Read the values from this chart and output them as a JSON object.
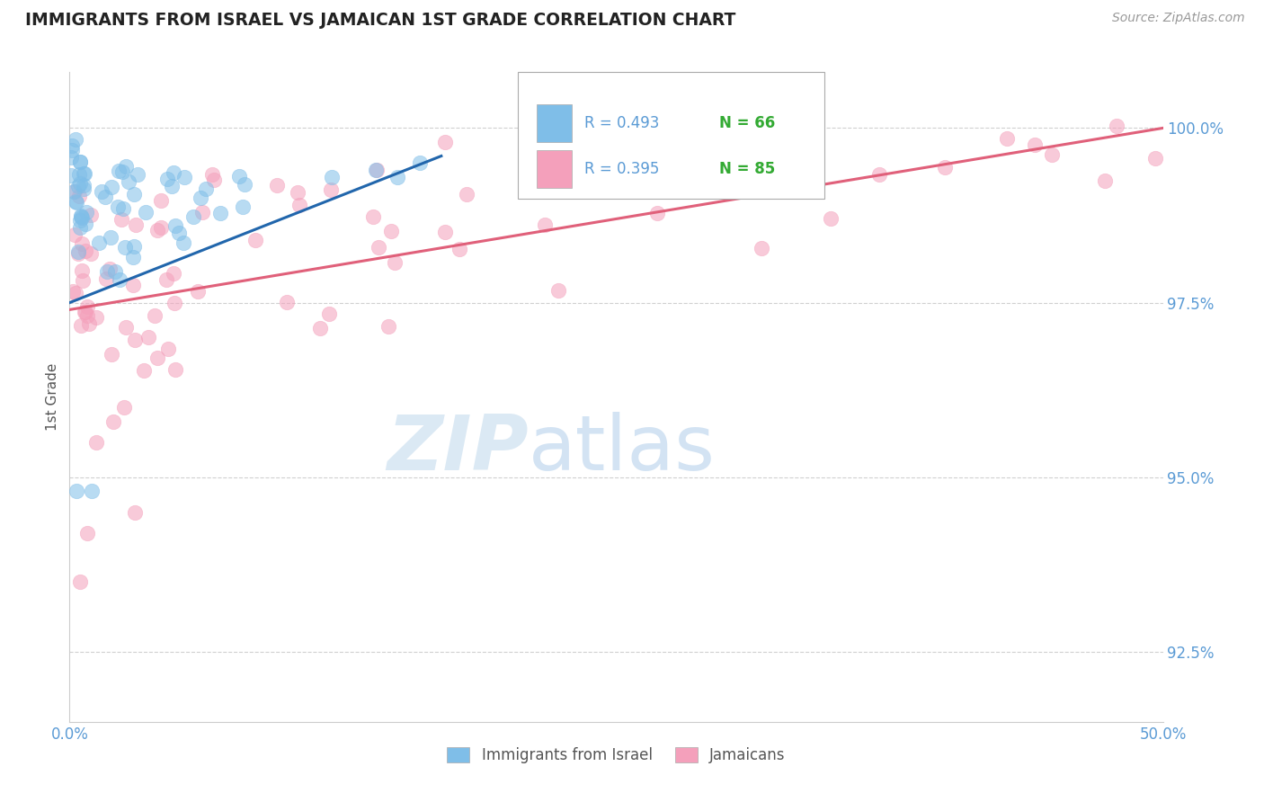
{
  "title": "IMMIGRANTS FROM ISRAEL VS JAMAICAN 1ST GRADE CORRELATION CHART",
  "source": "Source: ZipAtlas.com",
  "ylabel": "1st Grade",
  "x_min": 0.0,
  "x_max": 50.0,
  "y_min": 91.5,
  "y_max": 100.8,
  "y_ticks": [
    92.5,
    95.0,
    97.5,
    100.0
  ],
  "y_tick_labels": [
    "92.5%",
    "95.0%",
    "97.5%",
    "100.0%"
  ],
  "legend_r1": "R = 0.493",
  "legend_n1": "N = 66",
  "legend_r2": "R = 0.395",
  "legend_n2": "N = 85",
  "legend_label1": "Immigrants from Israel",
  "legend_label2": "Jamaicans",
  "blue_color": "#7fbee8",
  "pink_color": "#f4a0bb",
  "blue_line_color": "#2166ac",
  "pink_line_color": "#e0607a",
  "title_color": "#222222",
  "axis_tick_color": "#5b9bd5",
  "grid_color": "#d0d0d0",
  "blue_trend_x0": 0.0,
  "blue_trend_y0": 97.5,
  "blue_trend_x1": 17.0,
  "blue_trend_y1": 99.6,
  "pink_trend_x0": 0.0,
  "pink_trend_y0": 97.4,
  "pink_trend_x1": 50.0,
  "pink_trend_y1": 100.0
}
